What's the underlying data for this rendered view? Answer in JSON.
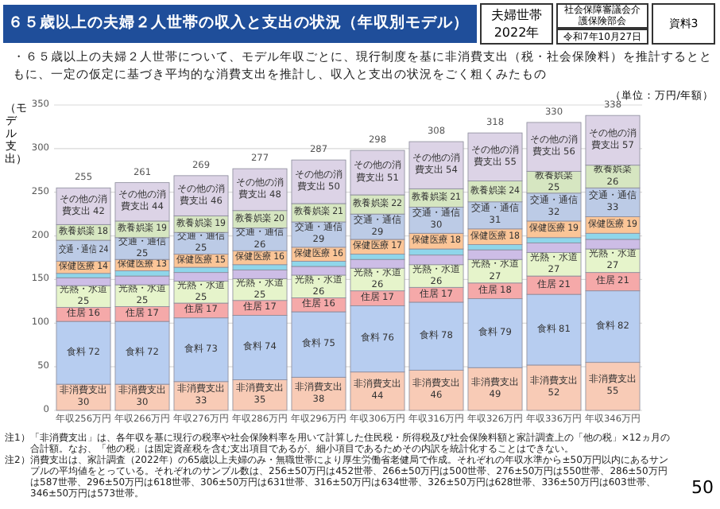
{
  "chart_data": {
    "type": "bar",
    "stacked": true,
    "title": "６５歳以上の夫婦２人世帯の収入と支出の状況（年収別モデル）",
    "subtitle": "・６５歳以上の夫婦２人世帯について、モデル年収ごとに、現行制度を基に非消費支出（税・社会保険料）を推計するとともに、一定の仮定に基づき平均的な消費支出を推計し、収入と支出の状況をごく粗くみたもの",
    "ylabel": "（モデル支出）",
    "annotations": [
      "夫婦世帯 2022年",
      "社会保障審議会介護保険部会",
      "令和7年10月27日",
      "資料3",
      "（単位：万円/年額）",
      "注1）「非消費支出」は、各年収を基に現行の税率や社会保険料率を用いて計算した住民税・所得税及び社会保険料額と家計調査上の「他の税」×12ヵ月の合計額。なお、「他の税」は固定資産税を含む支出項目であるが、細小項目であるためその内訳を統計化することはできない。",
      "注2）消費支出は、家計調査（2022年）の65歳以上夫婦のみ・無職世帯により厚生労働省老健局で作成。それぞれの年収水準から±50万円以内にあるサンプルの平均値をとっている。それぞれのサンプル数は、256±50万円は452世帯、266±50万円は500世帯、276±50万円は550世帯、286±50万円は587世帯、296±50万円は618世帯、306±50万円は631世帯、316±50万円は634世帯、326±50万円は628世帯、336±50万円は603世帯、346±50万円は573世帯。",
      "50"
    ],
    "categories": [
      "年収256万円",
      "年収266万円",
      "年収276万円",
      "年収286万円",
      "年収296万円",
      "年収306万円",
      "年収316万円",
      "年収326万円",
      "年収336万円",
      "年収346万円"
    ],
    "ylim": [
      0,
      350
    ],
    "yticks": [
      0,
      50,
      100,
      150,
      200,
      250,
      300,
      350
    ],
    "grid": "y",
    "data_labels": true,
    "totals": [
      "255",
      "261",
      "269",
      "277",
      "287",
      "298",
      "308",
      "318",
      "330",
      "338"
    ],
    "series": [
      {
        "name": "非消費支出",
        "color": "#f8cbb6",
        "values": [
          30,
          30,
          33,
          35,
          38,
          44,
          46,
          49,
          52,
          55
        ]
      },
      {
        "name": "食料",
        "color": "#b7cdf0",
        "values": [
          72,
          72,
          73,
          74,
          75,
          76,
          78,
          79,
          81,
          82
        ]
      },
      {
        "name": "住居",
        "color": "#f5a9a9",
        "values": [
          16,
          17,
          17,
          17,
          16,
          17,
          17,
          18,
          21,
          21
        ]
      },
      {
        "name": "光熱・水道",
        "color": "#e6f4cb",
        "values": [
          25,
          25,
          25,
          25,
          26,
          26,
          26,
          27,
          27,
          27
        ]
      },
      {
        "color": "#cdbde6",
        "values": [
          9,
          10,
          10,
          10,
          10,
          10,
          11,
          11,
          11,
          11
        ],
        "value_labels": [
          null,
          null,
          null,
          null,
          null,
          null,
          null,
          null,
          null,
          null
        ]
      },
      {
        "color": "#8fd6ea",
        "values": [
          5,
          6,
          6,
          6,
          6,
          6,
          7,
          6,
          6,
          7
        ],
        "value_labels": [
          null,
          null,
          null,
          null,
          null,
          null,
          null,
          null,
          null,
          null
        ]
      },
      {
        "name": "保健医療",
        "color": "#fbc597",
        "values": [
          14,
          13,
          15,
          16,
          16,
          17,
          18,
          18,
          19,
          19
        ]
      },
      {
        "name": "交通・通信",
        "color": "#bccbe6",
        "values": [
          24,
          25,
          25,
          26,
          29,
          29,
          30,
          31,
          32,
          33
        ]
      },
      {
        "name": "教養娯楽",
        "color": "#d6e6c1",
        "values": [
          18,
          19,
          19,
          20,
          21,
          22,
          21,
          24,
          25,
          26
        ]
      },
      {
        "name": "その他の消費支出",
        "color": "#dcd3e6",
        "values": [
          42,
          44,
          46,
          48,
          50,
          51,
          54,
          55,
          56,
          57
        ]
      }
    ]
  }
}
